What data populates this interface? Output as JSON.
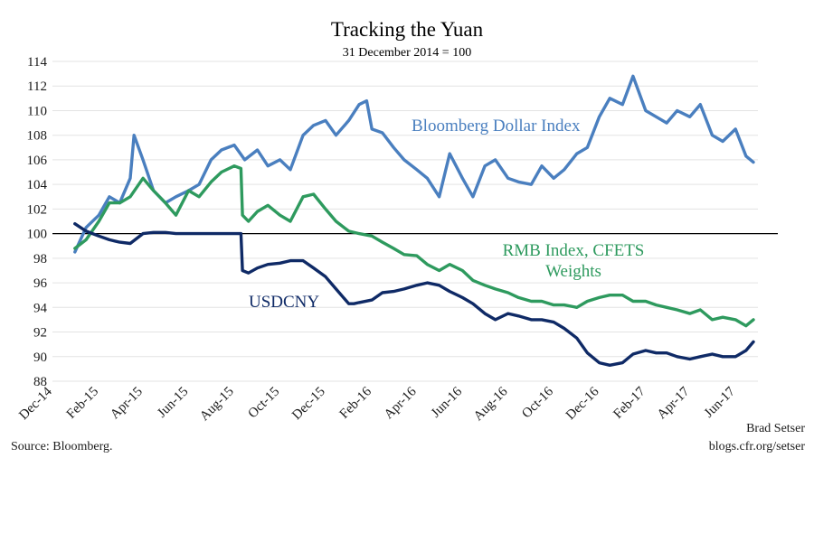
{
  "chart_data": {
    "type": "line",
    "title": "Tracking the Yuan",
    "subtitle": "31 December 2014 = 100",
    "xlabel": "",
    "ylabel": "",
    "ylim": [
      88,
      114
    ],
    "yticks": [
      88,
      90,
      92,
      94,
      96,
      98,
      100,
      102,
      104,
      106,
      108,
      110,
      112,
      114
    ],
    "xlim": [
      "2014-12",
      "2017-07"
    ],
    "xticks": [
      "Dec-14",
      "Feb-15",
      "Apr-15",
      "Jun-15",
      "Aug-15",
      "Oct-15",
      "Dec-15",
      "Feb-16",
      "Apr-16",
      "Jun-16",
      "Aug-16",
      "Oct-16",
      "Dec-16",
      "Feb-17",
      "Apr-17",
      "Jun-17"
    ],
    "reference_line": 100,
    "grid": "horizontal",
    "colors": {
      "bloomberg": "#4a7fbf",
      "cfets": "#2e9a5e",
      "usdcny": "#0f2a66",
      "grid": "#e3e3e3",
      "reference": "#000000"
    },
    "series": [
      {
        "name": "Bloomberg Dollar Index",
        "x": [
          "2014-12-31",
          "2015-01-15",
          "2015-02-01",
          "2015-02-15",
          "2015-03-01",
          "2015-03-15",
          "2015-03-20",
          "2015-04-01",
          "2015-04-15",
          "2015-05-01",
          "2015-05-15",
          "2015-06-01",
          "2015-06-15",
          "2015-07-01",
          "2015-07-15",
          "2015-08-01",
          "2015-08-15",
          "2015-09-01",
          "2015-09-15",
          "2015-10-01",
          "2015-10-15",
          "2015-11-01",
          "2015-11-15",
          "2015-12-01",
          "2015-12-15",
          "2016-01-01",
          "2016-01-15",
          "2016-01-25",
          "2016-02-01",
          "2016-02-15",
          "2016-03-01",
          "2016-03-15",
          "2016-04-01",
          "2016-04-15",
          "2016-05-01",
          "2016-05-15",
          "2016-06-01",
          "2016-06-15",
          "2016-07-01",
          "2016-07-15",
          "2016-08-01",
          "2016-08-15",
          "2016-09-01",
          "2016-09-15",
          "2016-10-01",
          "2016-10-15",
          "2016-11-01",
          "2016-11-15",
          "2016-12-01",
          "2016-12-15",
          "2017-01-01",
          "2017-01-15",
          "2017-02-01",
          "2017-02-15",
          "2017-03-01",
          "2017-03-15",
          "2017-04-01",
          "2017-04-15",
          "2017-05-01",
          "2017-05-15",
          "2017-06-01",
          "2017-06-15",
          "2017-06-25"
        ],
        "values": [
          98.5,
          100.5,
          101.5,
          103,
          102.5,
          104.5,
          108,
          106,
          103.5,
          102.5,
          103,
          103.5,
          104,
          106,
          106.8,
          107.2,
          106,
          106.8,
          105.5,
          106,
          105.2,
          108,
          108.8,
          109.2,
          108,
          109.2,
          110.5,
          110.8,
          108.5,
          108.2,
          107,
          106,
          105.2,
          104.5,
          103,
          106.5,
          104.5,
          103,
          105.5,
          106,
          104.5,
          104.2,
          104,
          105.5,
          104.5,
          105.2,
          106.5,
          107,
          109.5,
          111,
          110.5,
          112.8,
          110,
          109.5,
          109,
          110,
          109.5,
          110.5,
          108,
          107.5,
          108.5,
          106.3,
          105.8
        ]
      },
      {
        "name": "RMB Index, CFETS Weights",
        "x": [
          "2014-12-31",
          "2015-01-15",
          "2015-02-01",
          "2015-02-15",
          "2015-03-01",
          "2015-03-15",
          "2015-04-01",
          "2015-04-15",
          "2015-05-01",
          "2015-05-15",
          "2015-06-01",
          "2015-06-15",
          "2015-07-01",
          "2015-07-15",
          "2015-08-01",
          "2015-08-10",
          "2015-08-12",
          "2015-08-20",
          "2015-09-01",
          "2015-09-15",
          "2015-10-01",
          "2015-10-15",
          "2015-11-01",
          "2015-11-15",
          "2015-12-01",
          "2015-12-15",
          "2016-01-01",
          "2016-01-15",
          "2016-02-01",
          "2016-02-15",
          "2016-03-01",
          "2016-03-15",
          "2016-04-01",
          "2016-04-15",
          "2016-05-01",
          "2016-05-15",
          "2016-06-01",
          "2016-06-15",
          "2016-07-01",
          "2016-07-15",
          "2016-08-01",
          "2016-08-15",
          "2016-09-01",
          "2016-09-15",
          "2016-10-01",
          "2016-10-15",
          "2016-11-01",
          "2016-11-15",
          "2016-12-01",
          "2016-12-15",
          "2017-01-01",
          "2017-01-15",
          "2017-02-01",
          "2017-02-15",
          "2017-03-01",
          "2017-03-15",
          "2017-04-01",
          "2017-04-15",
          "2017-05-01",
          "2017-05-15",
          "2017-06-01",
          "2017-06-15",
          "2017-06-25"
        ],
        "values": [
          98.8,
          99.5,
          101,
          102.5,
          102.5,
          103,
          104.5,
          103.5,
          102.5,
          101.5,
          103.5,
          103,
          104.2,
          105,
          105.5,
          105.3,
          101.5,
          101,
          101.8,
          102.3,
          101.5,
          101,
          103,
          103.2,
          102,
          101,
          100.2,
          100,
          99.8,
          99.3,
          98.8,
          98.3,
          98.2,
          97.5,
          97,
          97.5,
          97,
          96.2,
          95.8,
          95.5,
          95.2,
          94.8,
          94.5,
          94.5,
          94.2,
          94.2,
          94,
          94.5,
          94.8,
          95,
          95,
          94.5,
          94.5,
          94.2,
          94,
          93.8,
          93.5,
          93.8,
          93,
          93.2,
          93,
          92.5,
          93
        ]
      },
      {
        "name": "USDCNY",
        "x": [
          "2014-12-31",
          "2015-01-15",
          "2015-02-01",
          "2015-02-15",
          "2015-03-01",
          "2015-03-15",
          "2015-04-01",
          "2015-04-15",
          "2015-05-01",
          "2015-05-15",
          "2015-06-01",
          "2015-06-15",
          "2015-07-01",
          "2015-07-15",
          "2015-08-01",
          "2015-08-10",
          "2015-08-12",
          "2015-08-20",
          "2015-09-01",
          "2015-09-15",
          "2015-10-01",
          "2015-10-15",
          "2015-11-01",
          "2015-11-15",
          "2015-12-01",
          "2015-12-15",
          "2016-01-01",
          "2016-01-08",
          "2016-01-15",
          "2016-02-01",
          "2016-02-15",
          "2016-03-01",
          "2016-03-15",
          "2016-04-01",
          "2016-04-15",
          "2016-05-01",
          "2016-05-15",
          "2016-06-01",
          "2016-06-15",
          "2016-07-01",
          "2016-07-15",
          "2016-08-01",
          "2016-08-15",
          "2016-09-01",
          "2016-09-15",
          "2016-10-01",
          "2016-10-15",
          "2016-11-01",
          "2016-11-15",
          "2016-12-01",
          "2016-12-15",
          "2017-01-01",
          "2017-01-15",
          "2017-02-01",
          "2017-02-15",
          "2017-03-01",
          "2017-03-15",
          "2017-04-01",
          "2017-04-15",
          "2017-05-01",
          "2017-05-15",
          "2017-06-01",
          "2017-06-15",
          "2017-06-25"
        ],
        "values": [
          100.8,
          100.2,
          99.8,
          99.5,
          99.3,
          99.2,
          100,
          100.1,
          100.1,
          100,
          100,
          100,
          100,
          100,
          100,
          100,
          97,
          96.8,
          97.2,
          97.5,
          97.6,
          97.8,
          97.8,
          97.2,
          96.5,
          95.5,
          94.3,
          94.3,
          94.4,
          94.6,
          95.2,
          95.3,
          95.5,
          95.8,
          96,
          95.8,
          95.3,
          94.8,
          94.3,
          93.5,
          93,
          93.5,
          93.3,
          93,
          93,
          92.8,
          92.3,
          91.5,
          90.3,
          89.5,
          89.3,
          89.5,
          90.2,
          90.5,
          90.3,
          90.3,
          90,
          89.8,
          90,
          90.2,
          90,
          90,
          90.5,
          91.2
        ]
      }
    ],
    "labels": {
      "bloomberg": "Bloomberg Dollar Index",
      "cfets_line1": "RMB Index, CFETS",
      "cfets_line2": "Weights",
      "usdcny": "USDCNY"
    },
    "source": "Source: Bloomberg.",
    "author": "Brad Setser",
    "website": "blogs.cfr.org/setser"
  }
}
